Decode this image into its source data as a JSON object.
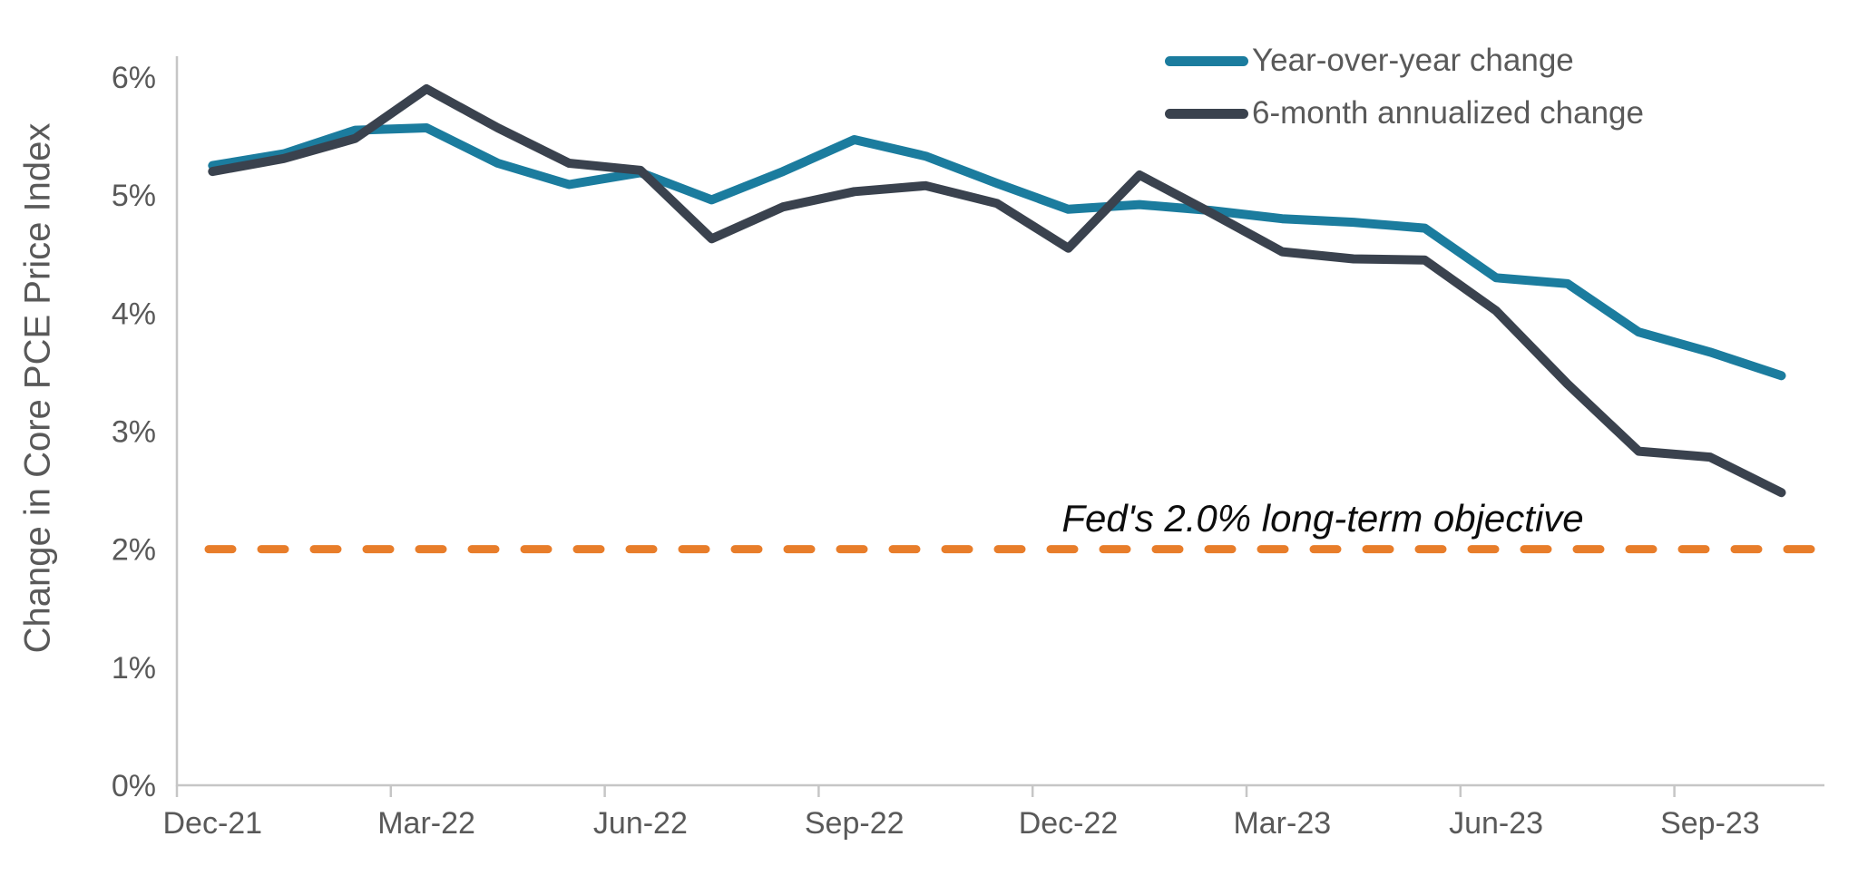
{
  "chart_data": {
    "type": "line",
    "title": "",
    "ylabel": "Change in Core PCE Price Index",
    "xlabel": "",
    "grid": false,
    "legend_position": "top-right",
    "ylim": [
      0,
      6
    ],
    "y_ticks": [
      "0%",
      "1%",
      "2%",
      "3%",
      "4%",
      "5%",
      "6%"
    ],
    "x": [
      "Dec-21",
      "Jan-22",
      "Feb-22",
      "Mar-22",
      "Apr-22",
      "May-22",
      "Jun-22",
      "Jul-22",
      "Aug-22",
      "Sep-22",
      "Oct-22",
      "Nov-22",
      "Dec-22",
      "Jan-23",
      "Feb-23",
      "Mar-23",
      "Apr-23",
      "May-23",
      "Jun-23",
      "Jul-23",
      "Aug-23",
      "Sep-23",
      "Oct-23"
    ],
    "x_tick_labels": [
      "Dec-21",
      "Mar-22",
      "Jun-22",
      "Sep-22",
      "Dec-22",
      "Mar-23",
      "Jun-23",
      "Sep-23"
    ],
    "series": [
      {
        "name": "Year-over-year change",
        "color": "#1B7C9E",
        "values": [
          5.25,
          5.35,
          5.55,
          5.57,
          5.27,
          5.09,
          5.19,
          4.96,
          5.2,
          5.47,
          5.33,
          5.1,
          4.88,
          4.92,
          4.87,
          4.8,
          4.77,
          4.72,
          4.3,
          4.25,
          3.84,
          3.67,
          3.47
        ]
      },
      {
        "name": "6-month annualized change",
        "color": "#3A424E",
        "values": [
          5.2,
          5.31,
          5.48,
          5.9,
          5.57,
          5.27,
          5.21,
          4.63,
          4.9,
          5.03,
          5.08,
          4.93,
          4.55,
          5.17,
          4.85,
          4.52,
          4.46,
          4.45,
          4.02,
          3.4,
          2.83,
          2.78,
          2.48
        ]
      }
    ],
    "reference_line": {
      "value": 2.0,
      "label": "Fed's 2.0% long-term objective",
      "color": "#E87D2A",
      "style": "dashed"
    }
  },
  "colors": {
    "axis_line": "#C6C6C6",
    "tick_text": "#595959",
    "annotation_text": "#0d0d0d"
  }
}
